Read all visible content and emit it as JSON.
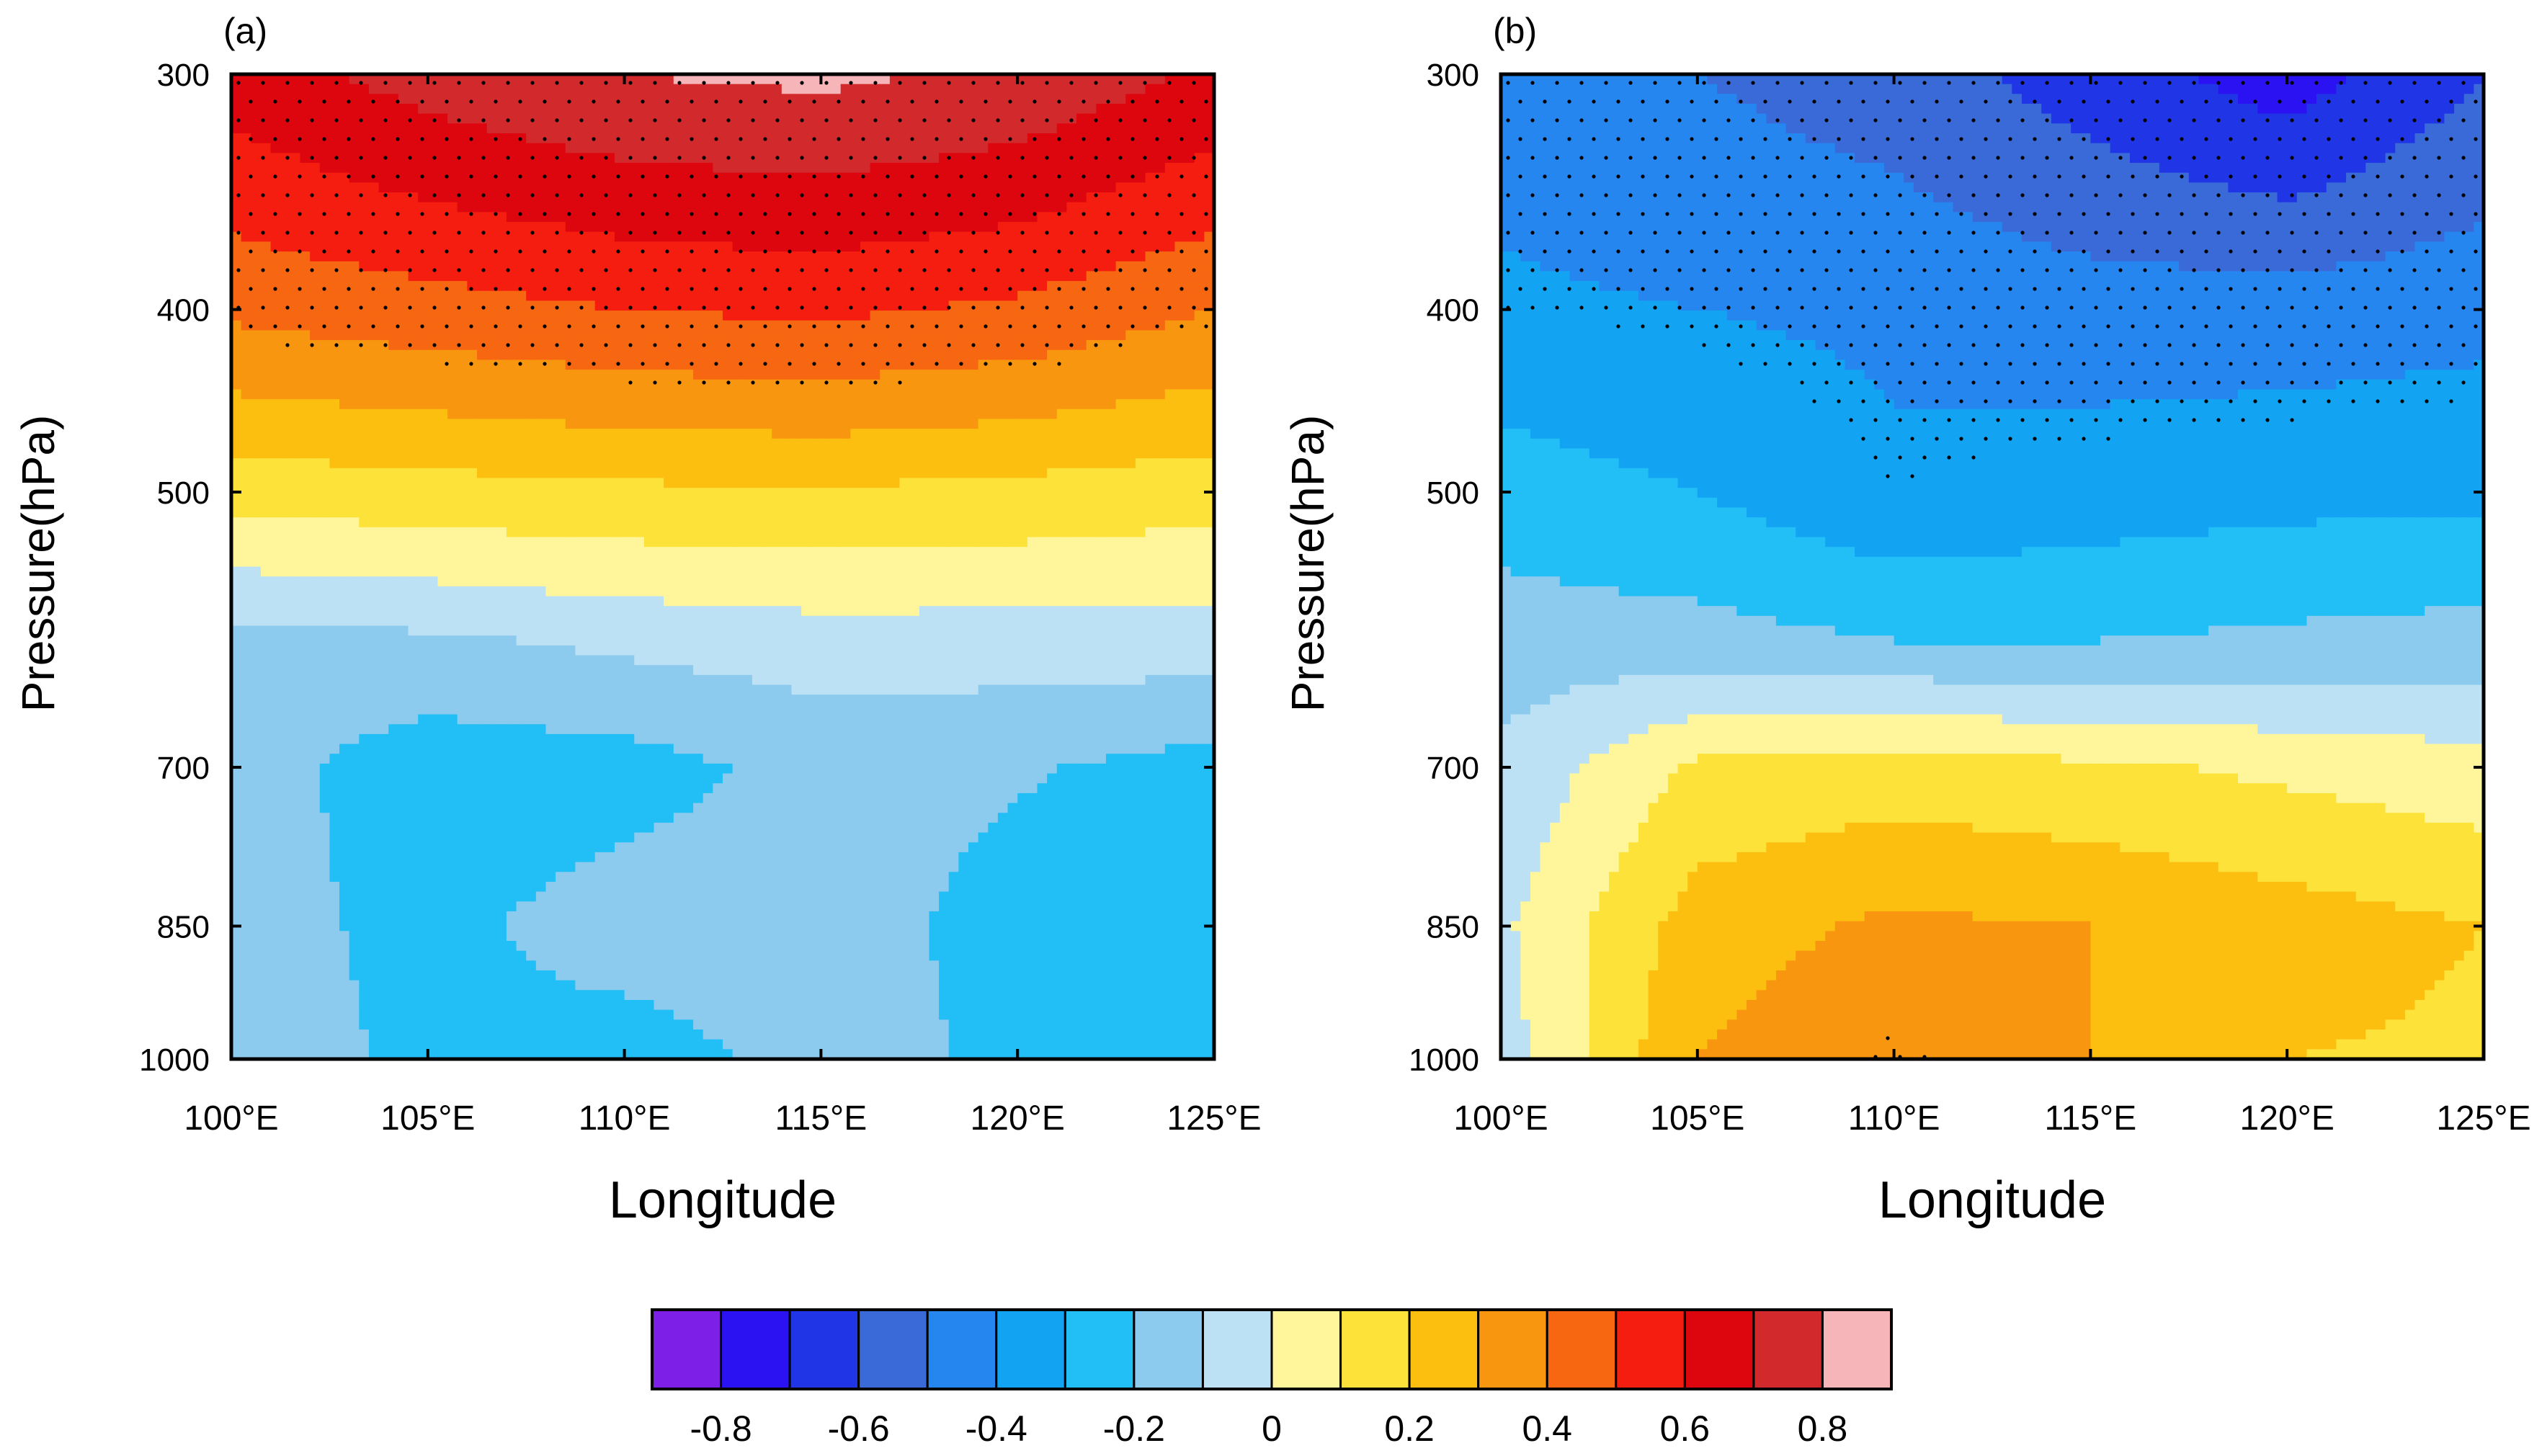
{
  "figure": {
    "colorbar": {
      "colors": [
        "#7e1fe8",
        "#2a12f2",
        "#2036e6",
        "#3a6ad8",
        "#2686f0",
        "#12a4f2",
        "#22bef6",
        "#8ccbee",
        "#bde1f4",
        "#fff69c",
        "#fde23a",
        "#fcbf10",
        "#f99610",
        "#f76712",
        "#f51d10",
        "#dd060e",
        "#d22a2c",
        "#f6b5b8"
      ],
      "tick_labels": [
        "-0.8",
        "-0.6",
        "-0.4",
        "-0.2",
        "0",
        "0.2",
        "0.4",
        "0.6",
        "0.8"
      ],
      "tick_values": [
        -0.8,
        -0.6,
        -0.4,
        -0.2,
        0,
        0.2,
        0.4,
        0.6,
        0.8
      ]
    }
  },
  "chart_data": [
    {
      "type": "heatmap",
      "panel_label": "(a)",
      "xlabel": "Longitude",
      "ylabel": "Pressure(hPa)",
      "xlim": [
        100,
        125
      ],
      "ylim": [
        1000,
        300
      ],
      "x_ticks": [
        100,
        105,
        110,
        115,
        120,
        125
      ],
      "x_tick_labels": [
        "100°E",
        "105°E",
        "110°E",
        "115°E",
        "120°E",
        "125°E"
      ],
      "y_ticks": [
        300,
        400,
        500,
        700,
        850,
        1000
      ],
      "y_tick_labels": [
        "300",
        "400",
        "500",
        "700",
        "850",
        "1000"
      ],
      "x": [
        100,
        105,
        110,
        115,
        120,
        125
      ],
      "y": [
        300,
        400,
        500,
        600,
        700,
        850,
        1000
      ],
      "z": [
        [
          0.65,
          0.74,
          0.8,
          0.82,
          0.78,
          0.68
        ],
        [
          0.42,
          0.46,
          0.5,
          0.52,
          0.48,
          0.4
        ],
        [
          0.14,
          0.16,
          0.18,
          0.19,
          0.17,
          0.14
        ],
        [
          -0.14,
          -0.12,
          -0.08,
          -0.05,
          -0.05,
          -0.05
        ],
        [
          -0.15,
          -0.26,
          -0.24,
          -0.17,
          -0.19,
          -0.24
        ],
        [
          -0.16,
          -0.23,
          -0.15,
          -0.15,
          -0.24,
          -0.27
        ],
        [
          -0.15,
          -0.22,
          -0.25,
          -0.16,
          -0.22,
          -0.26
        ]
      ],
      "stippling": "significant region (dots)"
    },
    {
      "type": "heatmap",
      "panel_label": "(b)",
      "xlabel": "Longitude",
      "ylabel": "Pressure(hPa)",
      "xlim": [
        100,
        125
      ],
      "ylim": [
        1000,
        300
      ],
      "x_ticks": [
        100,
        105,
        110,
        115,
        120,
        125
      ],
      "x_tick_labels": [
        "100°E",
        "105°E",
        "110°E",
        "115°E",
        "120°E",
        "125°E"
      ],
      "y_ticks": [
        300,
        400,
        500,
        700,
        850,
        1000
      ],
      "y_tick_labels": [
        "300",
        "400",
        "500",
        "700",
        "850",
        "1000"
      ],
      "x": [
        100,
        105,
        110,
        115,
        120,
        125
      ],
      "y": [
        300,
        400,
        500,
        600,
        700,
        850,
        1000
      ],
      "z": [
        [
          -0.45,
          -0.5,
          -0.55,
          -0.65,
          -0.75,
          -0.6
        ],
        [
          -0.38,
          -0.4,
          -0.42,
          -0.45,
          -0.45,
          -0.43
        ],
        [
          -0.25,
          -0.3,
          -0.38,
          -0.35,
          -0.33,
          -0.32
        ],
        [
          -0.15,
          -0.16,
          -0.2,
          -0.2,
          -0.18,
          -0.16
        ],
        [
          -0.08,
          0.12,
          0.15,
          0.12,
          0.08,
          0.04
        ],
        [
          -0.02,
          0.25,
          0.32,
          0.3,
          0.25,
          0.2
        ],
        [
          -0.05,
          0.3,
          0.4,
          0.3,
          0.2,
          0.18
        ]
      ],
      "stippling": "significant region (dots)"
    }
  ]
}
